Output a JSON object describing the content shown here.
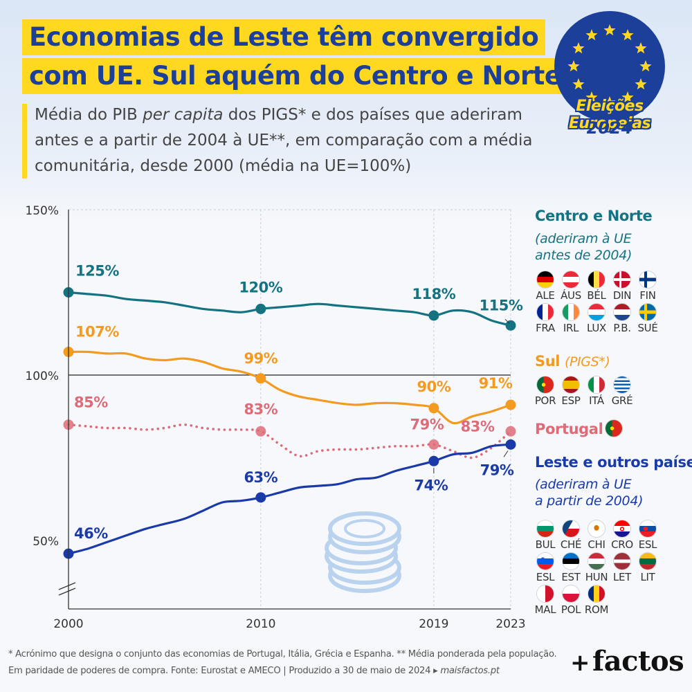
{
  "title": {
    "line1": "Economias de Leste têm convergido",
    "line2": "com UE. Sul aquém do Centro e Norte."
  },
  "subtitle": {
    "part1": "Média do PIB ",
    "italic": "per capita",
    "part2": " dos PIGS* e dos países que aderiram antes e a partir de 2004 à UE**, em comparação com a média comunitária, desde 2000 (média na UE=100%)"
  },
  "badge": {
    "line1": "Eleições Europeias",
    "line2": "2024"
  },
  "colors": {
    "centro_norte": "#157381",
    "sul": "#f39a1f",
    "portugal": "#dd6c78",
    "leste": "#1a3aa8",
    "eu_blue": "#1c3f99",
    "eu_yellow": "#ffd81f"
  },
  "chart_data": {
    "type": "line",
    "y_tick_labels": [
      "150%",
      "100%",
      "50%"
    ],
    "y_ticks": [
      150,
      100,
      50
    ],
    "ylim": [
      30,
      150
    ],
    "x_tick_labels": [
      "2000",
      "2010",
      "2019",
      "2023"
    ],
    "x_ticks": [
      2000,
      2010,
      2019,
      2023
    ],
    "xlim": [
      2000,
      2023
    ],
    "reference_line": 100,
    "series": [
      {
        "key": "centro_norte",
        "style": "solid",
        "x": [
          2000,
          2001,
          2002,
          2003,
          2004,
          2005,
          2006,
          2007,
          2008,
          2009,
          2010,
          2011,
          2012,
          2013,
          2014,
          2015,
          2016,
          2017,
          2018,
          2019,
          2020,
          2021,
          2022,
          2023
        ],
        "values": [
          125,
          124.5,
          124,
          123,
          122.5,
          122,
          121,
          120,
          119.5,
          119,
          120,
          120.5,
          121,
          121.5,
          121,
          120.5,
          120,
          119.5,
          119,
          118,
          119.5,
          119,
          116.5,
          115
        ],
        "labels": [
          {
            "x": 2000,
            "y": 125,
            "text": "125%"
          },
          {
            "x": 2010,
            "y": 120,
            "text": "120%"
          },
          {
            "x": 2019,
            "y": 118,
            "text": "118%"
          },
          {
            "x": 2023,
            "y": 115,
            "text": "115%"
          }
        ]
      },
      {
        "key": "sul",
        "style": "solid",
        "x": [
          2000,
          2001,
          2002,
          2003,
          2004,
          2005,
          2006,
          2007,
          2008,
          2009,
          2010,
          2011,
          2012,
          2013,
          2014,
          2015,
          2016,
          2017,
          2018,
          2019,
          2020,
          2021,
          2022,
          2023
        ],
        "values": [
          107,
          107,
          106.5,
          106.5,
          105,
          104.5,
          105,
          104,
          102,
          101,
          99,
          95.5,
          93.5,
          92.5,
          91.5,
          91,
          91.5,
          91.5,
          91,
          90,
          85.5,
          87.5,
          89,
          91
        ],
        "labels": [
          {
            "x": 2000,
            "y": 107,
            "text": "107%"
          },
          {
            "x": 2010,
            "y": 99,
            "text": "99%"
          },
          {
            "x": 2019,
            "y": 90,
            "text": "90%"
          },
          {
            "x": 2023,
            "y": 91,
            "text": "91%"
          }
        ]
      },
      {
        "key": "portugal",
        "style": "dotted",
        "x": [
          2000,
          2001,
          2002,
          2003,
          2004,
          2005,
          2006,
          2007,
          2008,
          2009,
          2010,
          2011,
          2012,
          2013,
          2014,
          2015,
          2016,
          2017,
          2018,
          2019,
          2020,
          2021,
          2022,
          2023
        ],
        "values": [
          85,
          84.5,
          84,
          84,
          83.5,
          84,
          85,
          84,
          83.5,
          83.5,
          83,
          79,
          75.5,
          77,
          77.5,
          77.5,
          78,
          78.5,
          78.5,
          79,
          77,
          75,
          78,
          83
        ],
        "labels": [
          {
            "x": 2000,
            "y": 85,
            "text": "85%"
          },
          {
            "x": 2010,
            "y": 83,
            "text": "83%"
          },
          {
            "x": 2019,
            "y": 79,
            "text": "79%"
          },
          {
            "x": 2023,
            "y": 83,
            "text": "83%"
          }
        ]
      },
      {
        "key": "leste",
        "style": "solid",
        "x": [
          2000,
          2001,
          2002,
          2003,
          2004,
          2005,
          2006,
          2007,
          2008,
          2009,
          2010,
          2011,
          2012,
          2013,
          2014,
          2015,
          2016,
          2017,
          2018,
          2019,
          2020,
          2021,
          2022,
          2023
        ],
        "values": [
          46,
          47.5,
          49.5,
          51.5,
          53.5,
          55,
          56.5,
          59,
          61.5,
          62,
          63,
          64.5,
          66,
          66.5,
          67,
          68.5,
          69,
          71,
          72.5,
          74,
          76,
          76.5,
          78.5,
          79
        ],
        "labels": [
          {
            "x": 2000,
            "y": 46,
            "text": "46%"
          },
          {
            "x": 2010,
            "y": 63,
            "text": "63%"
          },
          {
            "x": 2019,
            "y": 74,
            "text": "74%"
          },
          {
            "x": 2023,
            "y": 79,
            "text": "79%"
          }
        ]
      }
    ]
  },
  "legend": {
    "centro_norte": {
      "title": "Centro e Norte",
      "sub": [
        "(aderiram à UE",
        "antes de 2004)"
      ],
      "countries": [
        {
          "code": "ALE",
          "flag": "germany"
        },
        {
          "code": "ÁUS",
          "flag": "austria"
        },
        {
          "code": "BÉL",
          "flag": "belgium"
        },
        {
          "code": "DIN",
          "flag": "denmark"
        },
        {
          "code": "FIN",
          "flag": "finland"
        },
        {
          "code": "FRA",
          "flag": "france"
        },
        {
          "code": "IRL",
          "flag": "ireland"
        },
        {
          "code": "LUX",
          "flag": "luxembourg"
        },
        {
          "code": "P.B.",
          "flag": "netherlands"
        },
        {
          "code": "SUÉ",
          "flag": "sweden"
        }
      ]
    },
    "sul": {
      "title": "Sul",
      "title_italic": "(PIGS*)",
      "countries": [
        {
          "code": "POR",
          "flag": "portugal"
        },
        {
          "code": "ESP",
          "flag": "spain"
        },
        {
          "code": "ITÁ",
          "flag": "italy"
        },
        {
          "code": "GRÉ",
          "flag": "greece"
        }
      ]
    },
    "portugal": {
      "title": "Portugal",
      "flag": "portugal"
    },
    "leste": {
      "title": "Leste e outros países",
      "sub": [
        "(aderiram à UE",
        "a partir de 2004)"
      ],
      "countries": [
        {
          "code": "BUL",
          "flag": "bulgaria"
        },
        {
          "code": "CHÉ",
          "flag": "czechia"
        },
        {
          "code": "CHI",
          "flag": "cyprus"
        },
        {
          "code": "CRO",
          "flag": "croatia"
        },
        {
          "code": "ESL",
          "flag": "slovakia"
        },
        {
          "code": "ESL",
          "flag": "slovenia"
        },
        {
          "code": "EST",
          "flag": "estonia"
        },
        {
          "code": "HUN",
          "flag": "hungary"
        },
        {
          "code": "LET",
          "flag": "latvia"
        },
        {
          "code": "LIT",
          "flag": "lithuania"
        },
        {
          "code": "MAL",
          "flag": "malta"
        },
        {
          "code": "POL",
          "flag": "poland"
        },
        {
          "code": "ROM",
          "flag": "romania"
        }
      ]
    }
  },
  "footnote": {
    "line1": "* Acrónimo que designa o conjunto das economias de Portugal, Itália, Grécia e Espanha. ** Média ponderada pela população.",
    "line2a": "Em paridade de poderes de compra. Fonte: Eurostat e AMECO | Produzido a 30 de maio de 2024 ▸ ",
    "line2b": "maisfactos.pt"
  },
  "brand": {
    "plus": "+",
    "name": "factos"
  }
}
